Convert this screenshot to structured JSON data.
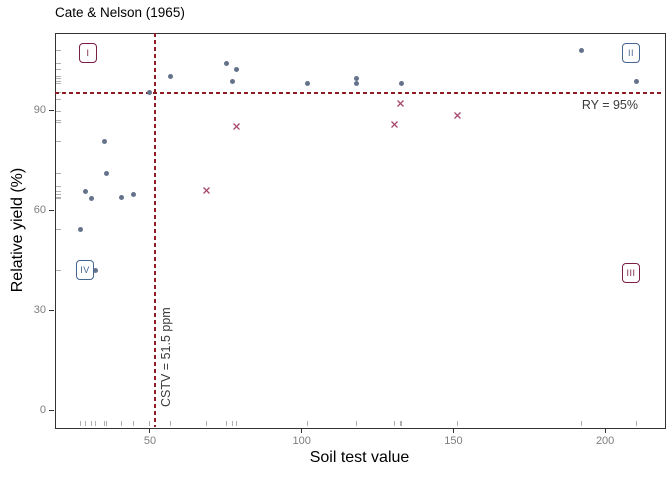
{
  "title": "Cate & Nelson (1965)",
  "x_axis": {
    "label": "Soil test value",
    "ticks": [
      "50",
      "100",
      "150",
      "200"
    ]
  },
  "y_axis": {
    "label": "Relative yield (%)",
    "ticks": [
      "0",
      "30",
      "60",
      "90"
    ]
  },
  "annotations": {
    "ry_label": "RY = 95%",
    "cstv_label": "CSTV = 51.5 ppm"
  },
  "quadrants": [
    {
      "label": "I",
      "color": "#7B1E46"
    },
    {
      "label": "II",
      "color": "#44658F"
    },
    {
      "label": "III",
      "color": "#7B1E46"
    },
    {
      "label": "IV",
      "color": "#44658F"
    }
  ],
  "colors": {
    "dots": "#64738B",
    "crosses": "#A8486E",
    "guide_lines": "#8F1D23",
    "tick_labels": "#7D7D7D",
    "annotation_text": "#3A3A3A",
    "rug": "#AFAFAF",
    "panel_border": "#333333"
  },
  "chart_data": {
    "type": "scatter",
    "title": "Cate & Nelson (1965)",
    "xlabel": "Soil test value",
    "ylabel": "Relative yield (%)",
    "xlim": [
      18.7,
      219.4
    ],
    "ylim": [
      -5.1,
      113.1
    ],
    "x_ticks": [
      50,
      100,
      150,
      200
    ],
    "y_ticks": [
      0,
      30,
      60,
      90
    ],
    "grid": false,
    "rug": true,
    "hline": {
      "y": 95,
      "label": "RY = 95%"
    },
    "vline": {
      "x": 51.5,
      "label": "CSTV = 51.5 ppm"
    },
    "quadrant_labels": [
      "I",
      "II",
      "III",
      "IV"
    ],
    "series": [
      {
        "name": "circle-points",
        "marker": "circle",
        "color": "#64738B",
        "points": [
          [
            27.0,
            54.3
          ],
          [
            28.9,
            65.6
          ],
          [
            30.8,
            63.6
          ],
          [
            32.2,
            41.9
          ],
          [
            34.9,
            80.6
          ],
          [
            35.8,
            71.1
          ],
          [
            40.7,
            63.8
          ],
          [
            44.7,
            64.6
          ],
          [
            49.7,
            95.2
          ],
          [
            56.8,
            100.2
          ],
          [
            75.2,
            104.0
          ],
          [
            77.1,
            98.7
          ],
          [
            78.5,
            102.2
          ],
          [
            102.0,
            98.0
          ],
          [
            118.0,
            99.4
          ],
          [
            118.0,
            97.9
          ],
          [
            133.0,
            97.9
          ],
          [
            192.3,
            107.8
          ],
          [
            210.2,
            98.7
          ]
        ]
      },
      {
        "name": "cross-points",
        "marker": "x",
        "color": "#A8486E",
        "points": [
          [
            68.6,
            67.1
          ],
          [
            78.5,
            86.2
          ],
          [
            130.7,
            86.8
          ],
          [
            132.6,
            93.2
          ],
          [
            151.4,
            89.5
          ]
        ]
      }
    ]
  }
}
